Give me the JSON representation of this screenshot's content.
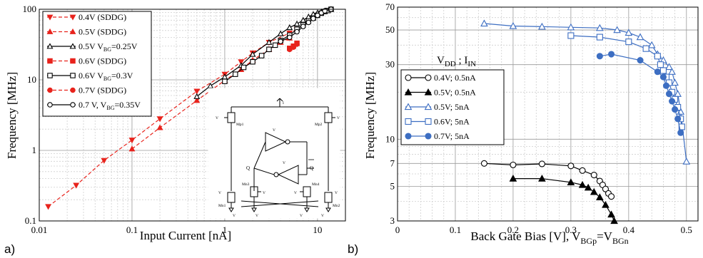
{
  "panels": {
    "a": {
      "tag": "a)"
    },
    "b": {
      "tag": "b)"
    }
  },
  "chart_data": [
    {
      "type": "line",
      "panel": "a",
      "xlabel": "Input Current  [nA]",
      "ylabel": "Frequency [MHz]",
      "xscale": "log",
      "yscale": "log",
      "xlim": [
        0.01,
        20
      ],
      "ylim": [
        0.1,
        100
      ],
      "grid": true,
      "legend_position": "top-left",
      "x_tick_labels": [
        "0.01",
        "0.1",
        "1",
        "10"
      ],
      "y_tick_labels": [
        "0.1",
        "1",
        "10",
        "100"
      ],
      "series": [
        {
          "name": "0.4V (SDDG)",
          "color": "#e8231c",
          "dash": true,
          "marker": "triangle-down",
          "filled": true,
          "points": [
            [
              0.0125,
              0.16
            ],
            [
              0.025,
              0.32
            ],
            [
              0.05,
              0.72
            ],
            [
              0.1,
              1.4
            ],
            [
              0.2,
              2.8
            ],
            [
              0.5,
              6.9
            ],
            [
              1,
              12
            ],
            [
              1.5,
              18
            ],
            [
              2,
              24
            ],
            [
              3,
              34
            ],
            [
              5,
              46
            ],
            [
              6,
              52
            ]
          ]
        },
        {
          "name": "0.5V (SDDG)",
          "color": "#e8231c",
          "dash": true,
          "marker": "triangle-up",
          "filled": true,
          "points": [
            [
              0.1,
              1.05
            ],
            [
              0.2,
              2.1
            ],
            [
              0.5,
              5.1
            ],
            [
              1,
              9.8
            ],
            [
              1.5,
              14
            ],
            [
              2,
              19
            ],
            [
              3,
              27
            ],
            [
              4,
              34
            ],
            [
              5,
              39
            ]
          ]
        },
        {
          "name": "0.5V V_BG=0.25V",
          "color": "#000000",
          "dash": false,
          "marker": "triangle-up",
          "filled": false,
          "points": [
            [
              0.5,
              5.8
            ],
            [
              0.7,
              8.2
            ],
            [
              1,
              11
            ],
            [
              1.5,
              16
            ],
            [
              2,
              23
            ],
            [
              3,
              34
            ],
            [
              4,
              45
            ],
            [
              5,
              55
            ],
            [
              6,
              62
            ],
            [
              7,
              70
            ],
            [
              8,
              78
            ],
            [
              9,
              85
            ],
            [
              10,
              89
            ],
            [
              11,
              92
            ],
            [
              12,
              95
            ],
            [
              14,
              100
            ]
          ]
        },
        {
          "name": "0.6V (SDDG)",
          "color": "#e8231c",
          "dash": true,
          "marker": "square",
          "filled": true,
          "points": [
            [
              5,
              28
            ],
            [
              5.5,
              30
            ],
            [
              6,
              33
            ]
          ]
        },
        {
          "name": "0.6V V_BG=0.3V",
          "color": "#000000",
          "dash": false,
          "marker": "square",
          "filled": false,
          "points": [
            [
              1,
              9.5
            ],
            [
              1.3,
              12
            ],
            [
              1.6,
              15
            ],
            [
              2,
              18
            ],
            [
              2.5,
              22
            ],
            [
              3,
              27
            ],
            [
              3.5,
              31
            ],
            [
              4,
              36
            ],
            [
              5,
              43
            ],
            [
              6,
              52
            ],
            [
              7,
              60
            ],
            [
              8,
              68
            ],
            [
              9,
              75
            ],
            [
              10,
              82
            ],
            [
              11,
              88
            ],
            [
              12,
              93
            ],
            [
              13,
              96
            ],
            [
              14,
              100
            ]
          ]
        },
        {
          "name": "0.7V (SDDG)",
          "color": "#e8231c",
          "dash": true,
          "marker": "circle",
          "filled": true,
          "points": [
            [
              5,
              27
            ],
            [
              5.5,
              29
            ],
            [
              6,
              32
            ]
          ]
        },
        {
          "name": "0.7 V, V_BG=0.35V",
          "color": "#000000",
          "dash": false,
          "marker": "circle",
          "filled": false,
          "points": [
            [
              4,
              35
            ],
            [
              5,
              40
            ],
            [
              6,
              48
            ],
            [
              7,
              57
            ],
            [
              8,
              65
            ],
            [
              9,
              74
            ],
            [
              10,
              82
            ],
            [
              11,
              89
            ],
            [
              12,
              95
            ],
            [
              14,
              100
            ]
          ]
        }
      ],
      "legend": [
        {
          "label_main": "0.4V (SDDG)",
          "label_sub": "",
          "label_tail": ""
        },
        {
          "label_main": "0.5V (SDDG)",
          "label_sub": "",
          "label_tail": ""
        },
        {
          "label_main": "0.5V V",
          "label_sub": "BG",
          "label_tail": "=0.25V"
        },
        {
          "label_main": "0.6V (SDDG)",
          "label_sub": "",
          "label_tail": ""
        },
        {
          "label_main": "0.6V V",
          "label_sub": "BG",
          "label_tail": "=0.3V"
        },
        {
          "label_main": "0.7V (SDDG)",
          "label_sub": "",
          "label_tail": ""
        },
        {
          "label_main": "0.7 V, V",
          "label_sub": "BG",
          "label_tail": "=0.35V"
        }
      ],
      "inset_schematic": {
        "labels": [
          "I",
          "V",
          "V",
          "V",
          "V",
          "Mp1",
          "Mp2",
          "Mn1",
          "Mn2",
          "Mn3",
          "Mn4",
          "Q",
          "Q",
          "V",
          "V",
          "V",
          "V",
          "V",
          "V",
          "V",
          "V"
        ]
      }
    },
    {
      "type": "line",
      "panel": "b",
      "xlabel_main": "Back Gate Bias [V], V",
      "xlabel_sub1": "BGp",
      "xlabel_mid": "=V",
      "xlabel_sub2": "BGn",
      "ylabel": "Frequency [MHz]",
      "xscale": "linear",
      "yscale": "log",
      "xlim": [
        0,
        0.52
      ],
      "ylim": [
        3,
        70
      ],
      "grid": true,
      "x_tick_labels": [
        "0",
        "0.1",
        "0.2",
        "0.3",
        "0.4",
        "0.5"
      ],
      "y_tick_labels": [
        "3",
        "5",
        "7",
        "10",
        "30",
        "50",
        "70"
      ],
      "legend_title_main": "V",
      "legend_title_sub1": "DD",
      "legend_title_mid": " ; I",
      "legend_title_sub2": "IN",
      "legend_position": "center-left",
      "series": [
        {
          "name": "0.4V; 0.5nA",
          "color": "#000000",
          "marker": "circle",
          "filled": false,
          "points": [
            [
              0.15,
              7.0
            ],
            [
              0.2,
              6.85
            ],
            [
              0.25,
              6.95
            ],
            [
              0.3,
              6.75
            ],
            [
              0.32,
              6.3
            ],
            [
              0.34,
              5.9
            ],
            [
              0.35,
              5.4
            ],
            [
              0.355,
              5.1
            ],
            [
              0.36,
              4.8
            ],
            [
              0.365,
              4.5
            ],
            [
              0.37,
              4.3
            ]
          ]
        },
        {
          "name": "0.5V; 0.5nA",
          "color": "#000000",
          "marker": "triangle-up",
          "filled": true,
          "points": [
            [
              0.2,
              5.6
            ],
            [
              0.25,
              5.6
            ],
            [
              0.3,
              5.3
            ],
            [
              0.32,
              5.1
            ],
            [
              0.33,
              4.9
            ],
            [
              0.34,
              4.6
            ],
            [
              0.35,
              4.25
            ],
            [
              0.36,
              3.8
            ],
            [
              0.37,
              3.3
            ],
            [
              0.375,
              3.0
            ]
          ]
        },
        {
          "name": "0.5V; 5nA",
          "color": "#3d6ec2",
          "marker": "triangle-up",
          "filled": false,
          "points": [
            [
              0.15,
              55
            ],
            [
              0.2,
              53
            ],
            [
              0.25,
              52.5
            ],
            [
              0.3,
              52
            ],
            [
              0.35,
              51.5
            ],
            [
              0.38,
              50
            ],
            [
              0.4,
              48
            ],
            [
              0.42,
              45
            ],
            [
              0.44,
              40
            ],
            [
              0.45,
              35
            ],
            [
              0.46,
              32
            ],
            [
              0.47,
              29
            ],
            [
              0.475,
              27
            ],
            [
              0.48,
              23
            ],
            [
              0.485,
              19.5
            ],
            [
              0.49,
              15
            ],
            [
              0.5,
              7.2
            ]
          ]
        },
        {
          "name": "0.6V; 5nA",
          "color": "#3d6ec2",
          "marker": "square",
          "filled": false,
          "points": [
            [
              0.3,
              46
            ],
            [
              0.35,
              45
            ],
            [
              0.4,
              42
            ],
            [
              0.43,
              38
            ],
            [
              0.45,
              34
            ],
            [
              0.455,
              30
            ],
            [
              0.46,
              27.5
            ],
            [
              0.465,
              25
            ],
            [
              0.47,
              23
            ],
            [
              0.475,
              20
            ],
            [
              0.48,
              18
            ],
            [
              0.485,
              16
            ],
            [
              0.49,
              13.5
            ],
            [
              0.492,
              12
            ]
          ]
        },
        {
          "name": "0.7V; 5nA",
          "color": "#3d6ec2",
          "marker": "circle",
          "filled": true,
          "points": [
            [
              0.35,
              34
            ],
            [
              0.37,
              35
            ],
            [
              0.42,
              32
            ],
            [
              0.45,
              27
            ],
            [
              0.46,
              25
            ],
            [
              0.465,
              22
            ],
            [
              0.47,
              19.5
            ],
            [
              0.475,
              17.5
            ],
            [
              0.48,
              15.5
            ],
            [
              0.485,
              13.5
            ],
            [
              0.49,
              11
            ]
          ]
        }
      ]
    }
  ]
}
